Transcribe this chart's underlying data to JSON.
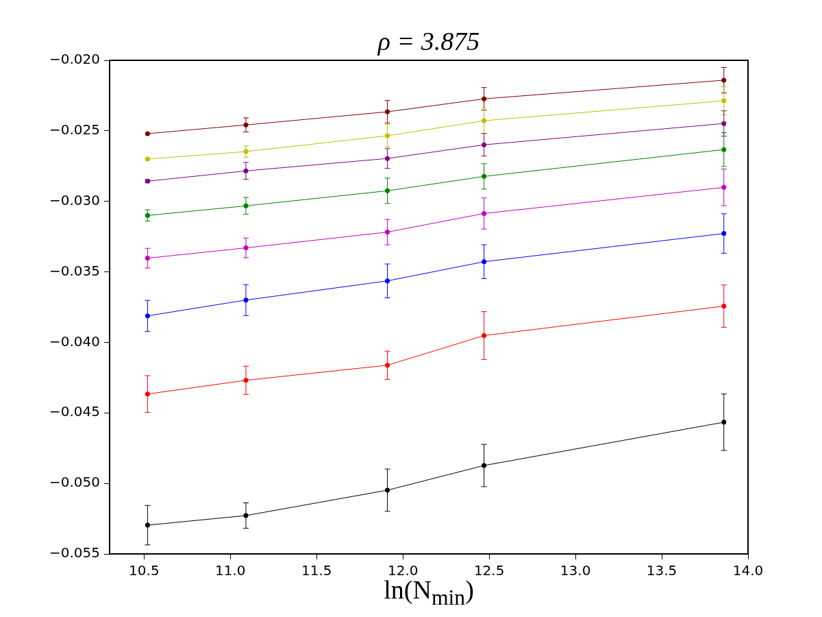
{
  "chart_data": {
    "type": "line",
    "title": "ρ = 3.875",
    "xlabel": "ln(N$_{min}$)",
    "x": [
      10.52,
      11.09,
      11.91,
      12.47,
      13.86
    ],
    "xlim": [
      10.3,
      14.0
    ],
    "xticks": [
      {
        "value": 10.5,
        "label": "10.5"
      },
      {
        "value": 11.0,
        "label": "11.0"
      },
      {
        "value": 11.5,
        "label": "11.5"
      },
      {
        "value": 12.0,
        "label": "12.0"
      },
      {
        "value": 12.5,
        "label": "12.5"
      },
      {
        "value": 13.0,
        "label": "13.0"
      },
      {
        "value": 13.5,
        "label": "13.5"
      },
      {
        "value": 14.0,
        "label": "14.0"
      }
    ],
    "ylim": [
      -0.055,
      -0.02
    ],
    "yticks": [
      {
        "value": -0.055,
        "label": "−0.055"
      },
      {
        "value": -0.05,
        "label": "−0.050"
      },
      {
        "value": -0.045,
        "label": "−0.045"
      },
      {
        "value": -0.04,
        "label": "−0.040"
      },
      {
        "value": -0.035,
        "label": "−0.035"
      },
      {
        "value": -0.03,
        "label": "−0.030"
      },
      {
        "value": -0.025,
        "label": "−0.025"
      },
      {
        "value": -0.02,
        "label": "−0.020"
      }
    ],
    "grid": false,
    "legend": false,
    "marker": "circle",
    "line_style": "solid",
    "series": [
      {
        "color": "#800000",
        "values": [
          -0.0252,
          -0.02458,
          -0.02365,
          -0.02273,
          -0.02141
        ],
        "errors": [
          null,
          0.0005,
          0.0008,
          0.0008,
          0.0009
        ]
      },
      {
        "color": "#bfbf00",
        "values": [
          -0.027,
          -0.02647,
          -0.02535,
          -0.02428,
          -0.02287
        ],
        "errors": [
          null,
          0.0004,
          0.0008,
          0.0009,
          0.001
        ]
      },
      {
        "color": "#800080",
        "values": [
          -0.02857,
          -0.02784,
          -0.02696,
          -0.02599,
          -0.02448
        ],
        "errors": [
          0.0001,
          0.0006,
          0.0007,
          0.0008,
          0.0009
        ]
      },
      {
        "color": "#008000",
        "values": [
          -0.031,
          -0.03032,
          -0.02925,
          -0.02823,
          -0.02633
        ],
        "errors": [
          0.0004,
          0.0006,
          0.0009,
          0.0009,
          0.0012
        ]
      },
      {
        "color": "#bf00bf",
        "values": [
          -0.03403,
          -0.0333,
          -0.03218,
          -0.03086,
          -0.02901
        ],
        "errors": [
          0.0007,
          0.0007,
          0.0009,
          0.0011,
          0.0013
        ]
      },
      {
        "color": "#0000ff",
        "values": [
          -0.03812,
          -0.037,
          -0.03564,
          -0.03428,
          -0.03228
        ],
        "errors": [
          0.0011,
          0.0011,
          0.0012,
          0.0012,
          0.0014
        ]
      },
      {
        "color": "#ff0000",
        "values": [
          -0.04366,
          -0.04269,
          -0.04162,
          -0.03952,
          -0.03743
        ],
        "errors": [
          0.0013,
          0.001,
          0.001,
          0.0017,
          0.0015
        ]
      },
      {
        "color": "#000000",
        "values": [
          -0.05296,
          -0.05228,
          -0.05048,
          -0.04873,
          -0.04566
        ],
        "errors": [
          0.0014,
          0.0009,
          0.0015,
          0.0015,
          0.002
        ]
      }
    ]
  }
}
